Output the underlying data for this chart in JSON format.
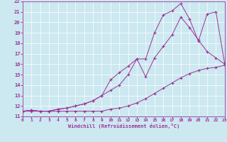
{
  "bg_color": "#cce8f0",
  "line_color": "#993399",
  "xlabel": "Windchill (Refroidissement éolien,°C)",
  "xlim": [
    0,
    23
  ],
  "ylim": [
    11,
    22
  ],
  "xticks": [
    0,
    1,
    2,
    3,
    4,
    5,
    6,
    7,
    8,
    9,
    10,
    11,
    12,
    13,
    14,
    15,
    16,
    17,
    18,
    19,
    20,
    21,
    22,
    23
  ],
  "yticks": [
    11,
    12,
    13,
    14,
    15,
    16,
    17,
    18,
    19,
    20,
    21,
    22
  ],
  "line1_x": [
    0,
    1,
    2,
    3,
    4,
    5,
    6,
    7,
    8,
    9,
    10,
    11,
    12,
    13,
    14,
    15,
    16,
    17,
    18,
    19,
    20,
    21,
    22,
    23
  ],
  "line1_y": [
    11.5,
    11.5,
    11.5,
    11.5,
    11.5,
    11.5,
    11.5,
    11.5,
    11.5,
    11.5,
    11.7,
    11.8,
    12.0,
    12.3,
    12.7,
    13.2,
    13.7,
    14.2,
    14.7,
    15.1,
    15.4,
    15.6,
    15.7,
    15.9
  ],
  "line2_x": [
    0,
    1,
    2,
    3,
    4,
    5,
    6,
    7,
    8,
    9,
    10,
    11,
    12,
    13,
    14,
    15,
    16,
    17,
    18,
    19,
    20,
    21,
    22,
    23
  ],
  "line2_y": [
    11.5,
    11.6,
    11.5,
    11.5,
    11.7,
    11.8,
    12.0,
    12.2,
    12.5,
    13.0,
    14.5,
    15.2,
    15.8,
    16.5,
    14.8,
    16.6,
    17.7,
    18.8,
    20.5,
    19.5,
    18.3,
    17.2,
    16.6,
    16.0
  ],
  "line3_x": [
    0,
    1,
    2,
    3,
    4,
    5,
    6,
    7,
    8,
    9,
    10,
    11,
    12,
    13,
    14,
    15,
    16,
    17,
    18,
    19,
    20,
    21,
    22,
    23
  ],
  "line3_y": [
    11.5,
    11.6,
    11.5,
    11.5,
    11.7,
    11.8,
    12.0,
    12.2,
    12.5,
    13.0,
    13.5,
    14.0,
    15.0,
    16.5,
    16.5,
    19.0,
    20.7,
    21.1,
    21.8,
    20.3,
    18.2,
    20.8,
    21.0,
    16.0
  ]
}
